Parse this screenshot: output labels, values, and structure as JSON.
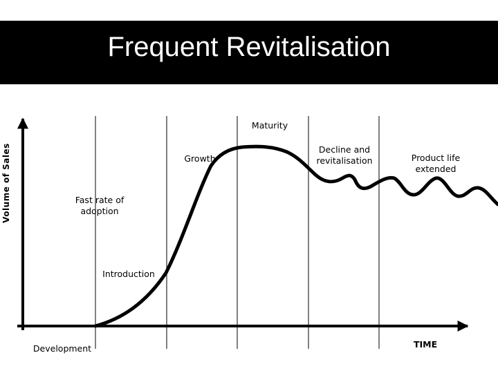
{
  "title": "Frequent Revitalisation",
  "axes": {
    "y_label": "Volume of Sales",
    "x_label": "TIME"
  },
  "stages": {
    "development": "Development",
    "introduction": "Introduction",
    "fast_adoption_line1": "Fast rate of",
    "fast_adoption_line2": "adoption",
    "growth": "Growth",
    "maturity": "Maturity",
    "decline_line1": "Decline and",
    "decline_line2": "revitalisation",
    "extended_line1": "Product life",
    "extended_line2": "extended"
  },
  "colors": {
    "title_background": "#000000",
    "title_text": "#ffffff",
    "lines": "#000000"
  }
}
